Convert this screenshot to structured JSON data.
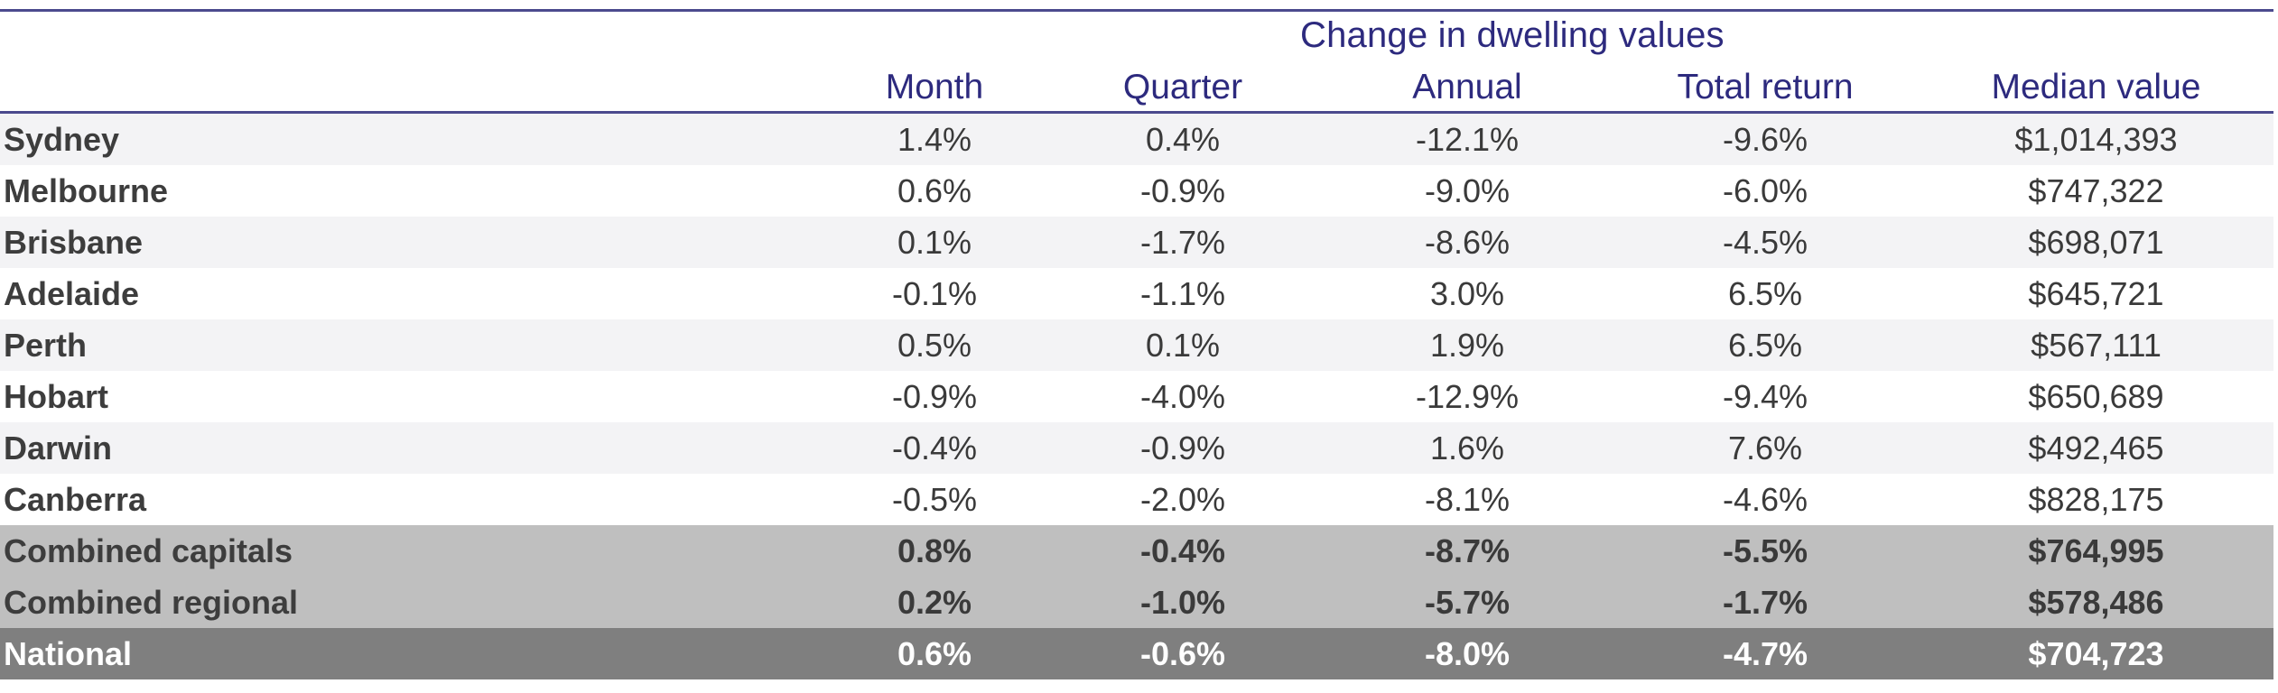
{
  "chart_data": {
    "type": "table",
    "group_title": "Change in dwelling values",
    "columns": [
      "Month",
      "Quarter",
      "Annual",
      "Total return",
      "Median value"
    ],
    "rows": [
      {
        "region": "Sydney",
        "values": [
          "1.4%",
          "0.4%",
          "-12.1%",
          "-9.6%",
          "$1,014,393"
        ],
        "style": "alt"
      },
      {
        "region": "Melbourne",
        "values": [
          "0.6%",
          "-0.9%",
          "-9.0%",
          "-6.0%",
          "$747,322"
        ],
        "style": "plain"
      },
      {
        "region": "Brisbane",
        "values": [
          "0.1%",
          "-1.7%",
          "-8.6%",
          "-4.5%",
          "$698,071"
        ],
        "style": "alt"
      },
      {
        "region": "Adelaide",
        "values": [
          "-0.1%",
          "-1.1%",
          "3.0%",
          "6.5%",
          "$645,721"
        ],
        "style": "plain"
      },
      {
        "region": "Perth",
        "values": [
          "0.5%",
          "0.1%",
          "1.9%",
          "6.5%",
          "$567,111"
        ],
        "style": "alt"
      },
      {
        "region": "Hobart",
        "values": [
          "-0.9%",
          "-4.0%",
          "-12.9%",
          "-9.4%",
          "$650,689"
        ],
        "style": "plain"
      },
      {
        "region": "Darwin",
        "values": [
          "-0.4%",
          "-0.9%",
          "1.6%",
          "7.6%",
          "$492,465"
        ],
        "style": "alt"
      },
      {
        "region": "Canberra",
        "values": [
          "-0.5%",
          "-2.0%",
          "-8.1%",
          "-4.6%",
          "$828,175"
        ],
        "style": "plain"
      },
      {
        "region": "Combined capitals",
        "values": [
          "0.8%",
          "-0.4%",
          "-8.7%",
          "-5.5%",
          "$764,995"
        ],
        "style": "combined"
      },
      {
        "region": "Combined regional",
        "values": [
          "0.2%",
          "-1.0%",
          "-5.7%",
          "-1.7%",
          "$578,486"
        ],
        "style": "combined"
      },
      {
        "region": "National",
        "values": [
          "0.6%",
          "-0.6%",
          "-8.0%",
          "-4.7%",
          "$704,723"
        ],
        "style": "national"
      }
    ],
    "colors": {
      "header_text": "#2d2a7e",
      "rule": "#4b4a8e",
      "alt_row": "#f3f3f5",
      "combined_row": "#bfbfbf",
      "national_row": "#7f7f7f"
    }
  }
}
